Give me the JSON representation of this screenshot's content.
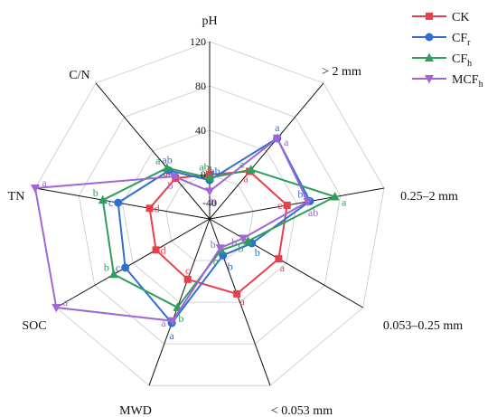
{
  "chart_data": {
    "type": "radar",
    "title": "",
    "axes": [
      "pH",
      "> 2 mm",
      "0.25–2 mm",
      "0.053–0.25 mm",
      "< 0.053 mm",
      "MWD",
      "SOC",
      "TN",
      "C/N"
    ],
    "r_range": [
      -40,
      120
    ],
    "ticks": [
      "-40",
      "0",
      "40",
      "80",
      "120"
    ],
    "tick_values": [
      -40,
      0,
      40,
      80,
      120
    ],
    "grid": true,
    "legend_position": "top-right",
    "series": [
      {
        "name": "CK",
        "name_main": "CK",
        "name_sub": "",
        "color": "#e8404a",
        "marker": "square",
        "values": [
          0,
          16,
          31,
          32,
          32,
          18,
          16,
          15,
          8
        ],
        "significance": [
          "a",
          "a",
          "c",
          "a",
          "a",
          "c",
          "d",
          "d",
          "ab"
        ]
      },
      {
        "name": "CFr",
        "name_main": "CF",
        "name_sub": "r",
        "color": "#2f6fd0",
        "marker": "circle",
        "values": [
          -5,
          55,
          52,
          4,
          -5,
          60,
          48,
          44,
          17
        ],
        "significance": [
          "ab",
          "a",
          "bc",
          "b",
          "b",
          "a",
          "c",
          "c",
          "ab"
        ]
      },
      {
        "name": "CFh",
        "name_main": "CF",
        "name_sub": "h",
        "color": "#2e9e5b",
        "marker": "triangle-up",
        "values": [
          -3,
          18,
          75,
          0,
          -10,
          45,
          60,
          58,
          20
        ],
        "significance": [
          "ab",
          "a",
          "a",
          "b",
          "b",
          "b",
          "b",
          "b",
          "a"
        ]
      },
      {
        "name": "MCFh",
        "name_main": "MCF",
        "name_sub": "h",
        "color": "#a066d6",
        "marker": "triangle-down",
        "values": [
          -15,
          55,
          50,
          -5,
          -12,
          58,
          120,
          120,
          10
        ],
        "significance": [
          "b",
          "a",
          "ab",
          "b",
          "b",
          "a",
          "a",
          "a",
          "b"
        ]
      }
    ]
  }
}
